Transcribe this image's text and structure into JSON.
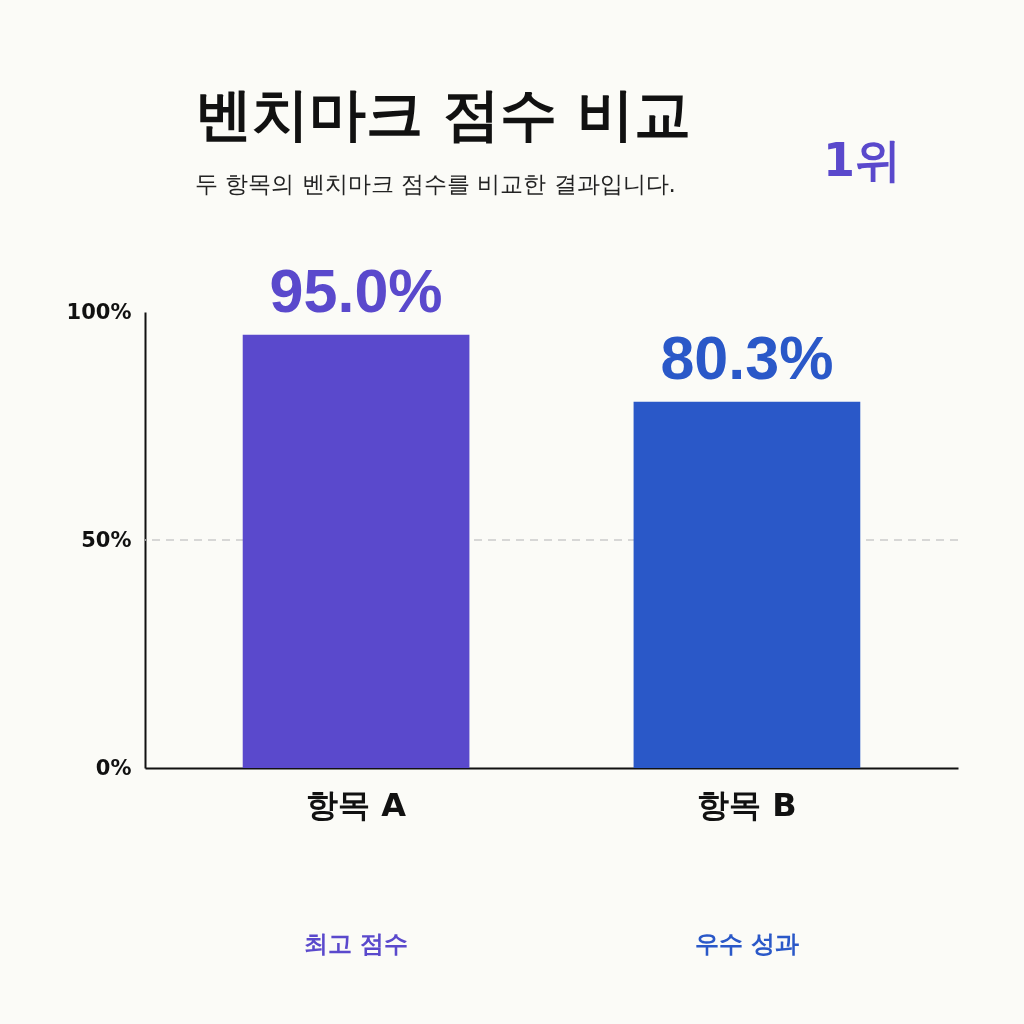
{
  "chart_data": {
    "type": "bar",
    "title": "벤치마크 점수 비교",
    "subtitle": "두 항목의 벤치마크 점수를 비교한 결과입니다.",
    "categories": [
      "항목 A",
      "항목 B"
    ],
    "values": [
      95.0,
      80.3
    ],
    "colors": [
      "#5a49cc",
      "#2a58c8"
    ],
    "value_labels": [
      "95.0%",
      "80.3%"
    ],
    "ylim": [
      0,
      100
    ],
    "yticks": [
      {
        "value": 0,
        "label": "0%"
      },
      {
        "value": 50,
        "label": "50%"
      },
      {
        "value": 100,
        "label": "100%"
      }
    ],
    "ref_lines": [
      {
        "axis": "y",
        "value": 50,
        "color": "#cccccc",
        "line_style": "dashed"
      }
    ],
    "grid": false,
    "legend": false,
    "annotations": [
      "최고 점수",
      "우수 성과",
      "1위"
    ]
  }
}
